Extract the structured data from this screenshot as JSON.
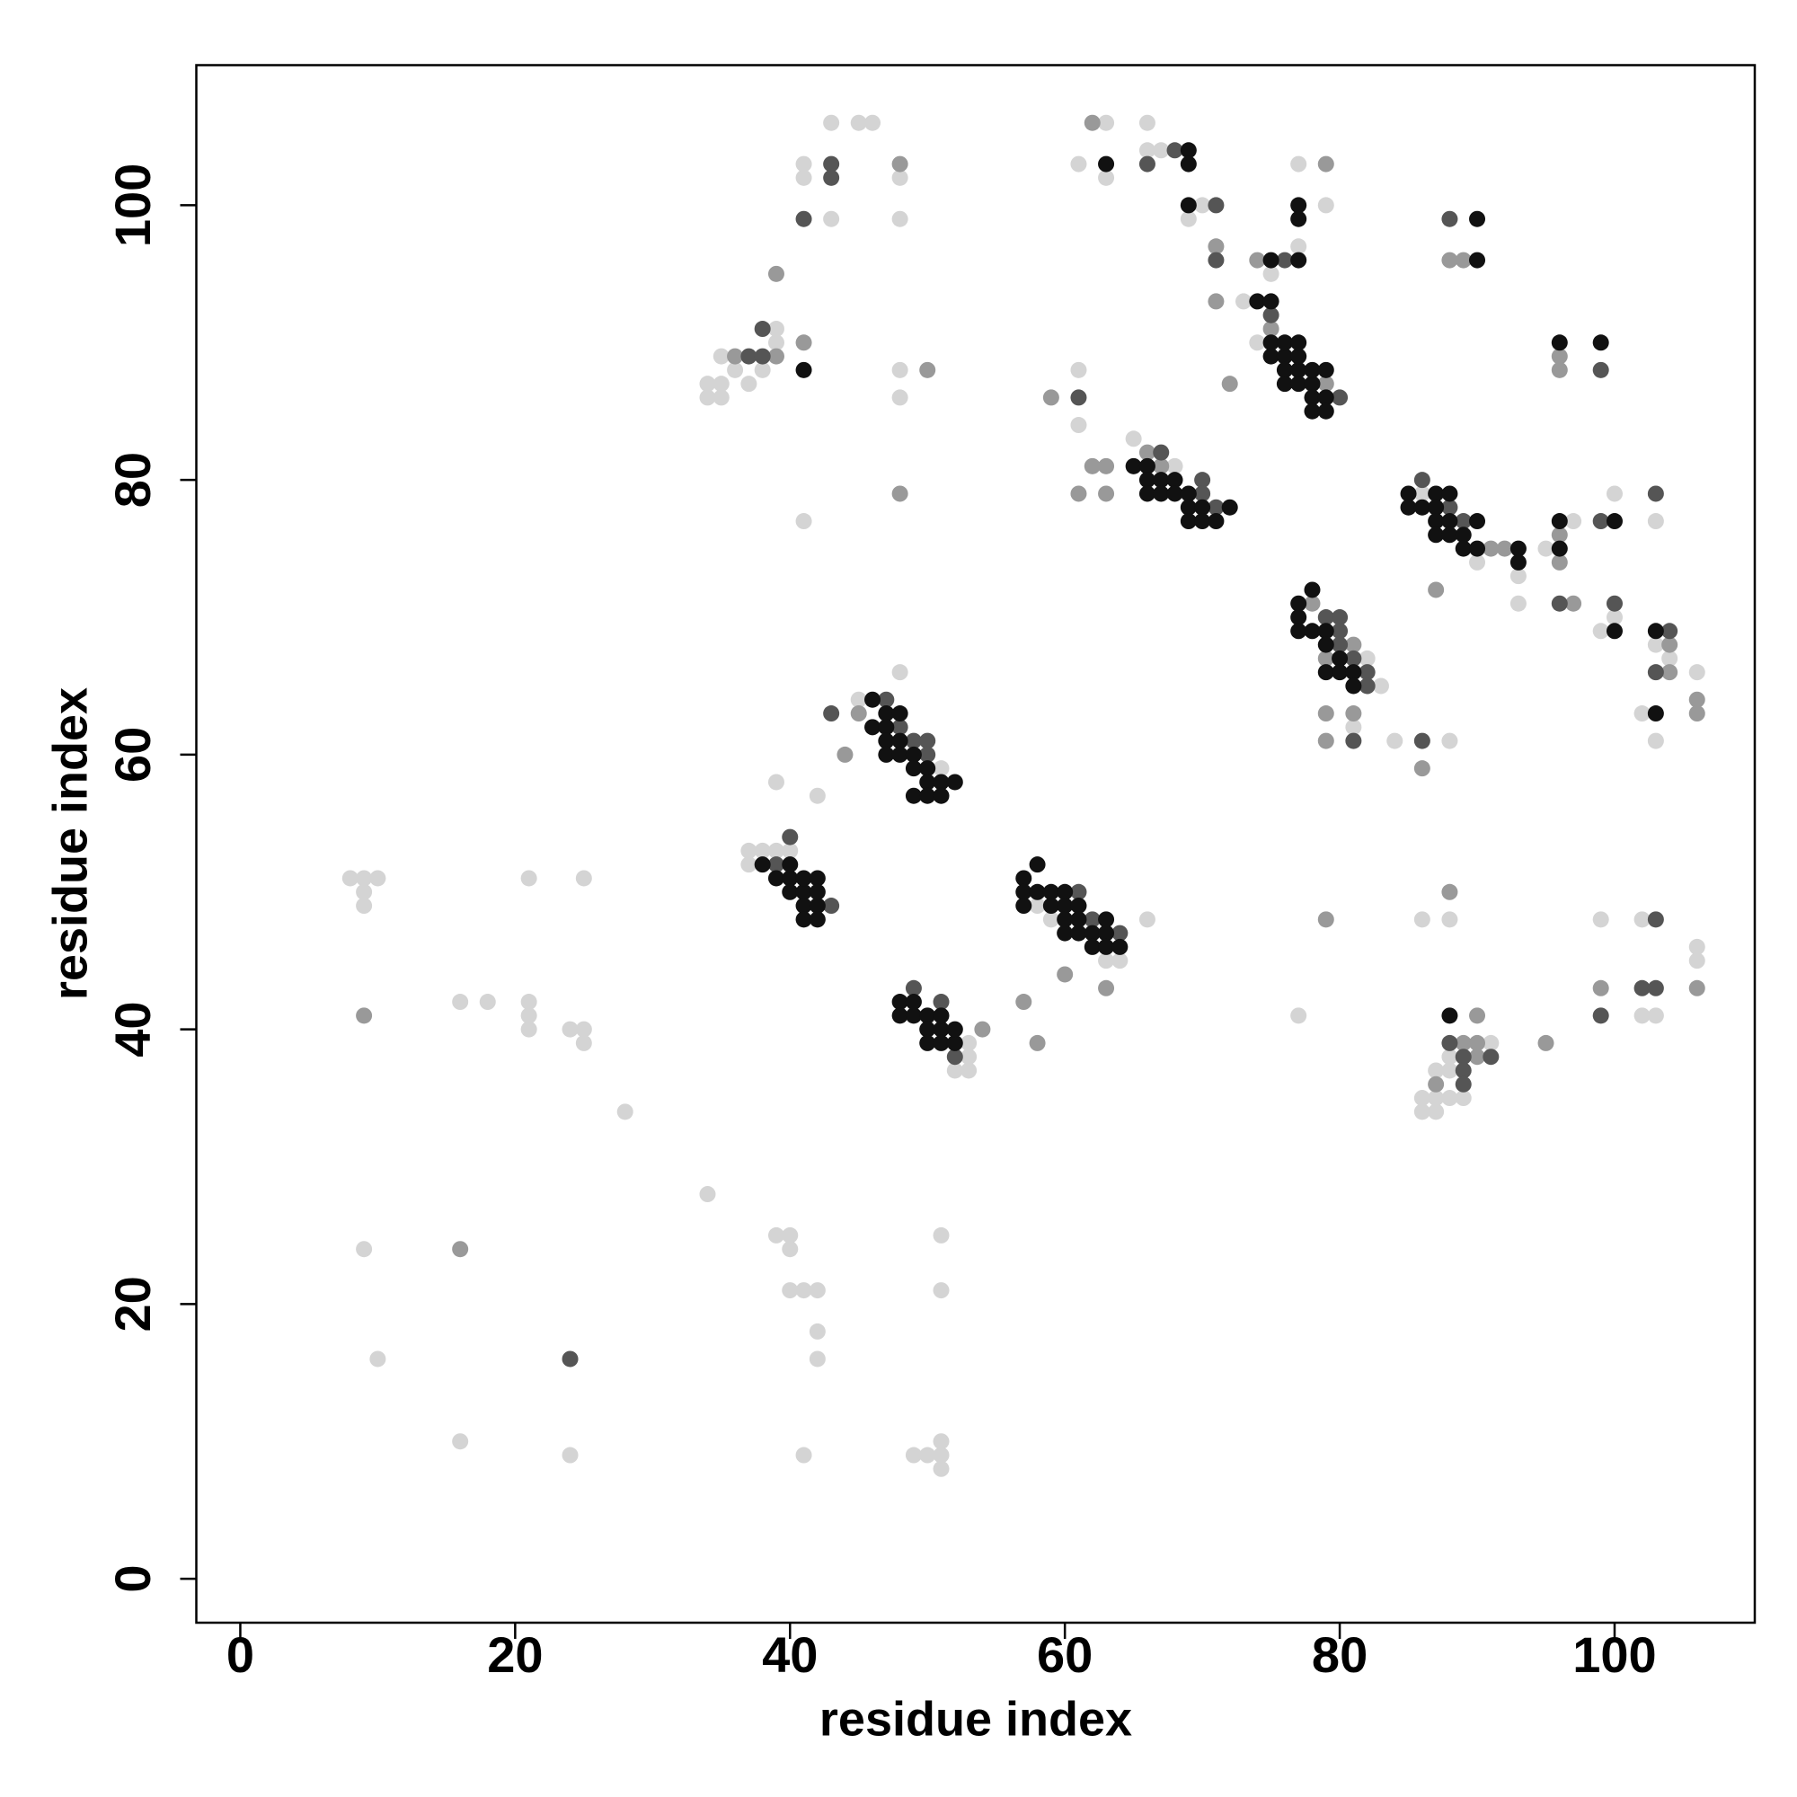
{
  "chart_data": {
    "type": "scatter",
    "xlabel": "residue index",
    "ylabel": "residue index",
    "xlim": [
      -3.2,
      110.2
    ],
    "ylim": [
      -3.2,
      110.2
    ],
    "xticks": [
      0,
      20,
      40,
      60,
      80,
      100
    ],
    "yticks": [
      0,
      20,
      40,
      60,
      80,
      100
    ],
    "series": [
      {
        "color": "#d4d4d4",
        "x": [
          8,
          9,
          10,
          9,
          9,
          21,
          25,
          16,
          18,
          21,
          21,
          21,
          24,
          25,
          25,
          28,
          34,
          9,
          39,
          40,
          40,
          40,
          41,
          42,
          42,
          42,
          10,
          16,
          24,
          41,
          49,
          50,
          51,
          51,
          51,
          51,
          51,
          34,
          34,
          35,
          35,
          35,
          36,
          37,
          38,
          39,
          39,
          41,
          41,
          43,
          45,
          46,
          43,
          48,
          48,
          48,
          48,
          41,
          37,
          38,
          39,
          40,
          37,
          48,
          45,
          51,
          39,
          42,
          52,
          53,
          53,
          53,
          58,
          59,
          63,
          64,
          66,
          65,
          68,
          61,
          61,
          63,
          66,
          61,
          63,
          66,
          67,
          69,
          70,
          73,
          74,
          75,
          77,
          77,
          79,
          81,
          82,
          83,
          84,
          86,
          90,
          93,
          93,
          95,
          97,
          100,
          100,
          99,
          103,
          103,
          104,
          102,
          103,
          106,
          88,
          88,
          86,
          77,
          99,
          102,
          102,
          103,
          106,
          106,
          91,
          88,
          87,
          88,
          86,
          87,
          88,
          89,
          86,
          87
        ],
        "y": [
          51,
          51,
          51,
          50,
          49,
          51,
          51,
          42,
          42,
          42,
          41,
          40,
          40,
          40,
          39,
          34,
          28,
          24,
          25,
          25,
          24,
          21,
          21,
          21,
          18,
          16,
          16,
          10,
          9,
          9,
          9,
          9,
          9,
          10,
          8,
          25,
          21,
          87,
          86,
          86,
          87,
          89,
          88,
          87,
          88,
          90,
          91,
          103,
          102,
          99,
          106,
          106,
          106,
          102,
          99,
          88,
          86,
          77,
          53,
          53,
          53,
          53,
          52,
          66,
          64,
          59,
          58,
          57,
          37,
          37,
          38,
          39,
          49,
          48,
          45,
          45,
          48,
          83,
          81,
          84,
          88,
          106,
          106,
          103,
          102,
          104,
          104,
          99,
          100,
          93,
          90,
          95,
          97,
          103,
          100,
          62,
          67,
          65,
          61,
          79,
          74,
          73,
          71,
          75,
          77,
          79,
          70,
          69,
          77,
          68,
          67,
          63,
          61,
          66,
          61,
          48,
          48,
          41,
          48,
          48,
          41,
          41,
          46,
          45,
          39,
          38,
          37,
          37,
          35,
          35,
          35,
          35,
          34,
          34
        ]
      },
      {
        "color": "#999999",
        "x": [
          9,
          16,
          39,
          41,
          48,
          50,
          48,
          44,
          45,
          54,
          63,
          57,
          58,
          60,
          66,
          67,
          62,
          63,
          61,
          63,
          59,
          62,
          71,
          71,
          72,
          74,
          75,
          79,
          79,
          78,
          79,
          81,
          79,
          79,
          81,
          87,
          91,
          92,
          96,
          96,
          97,
          96,
          96,
          88,
          89,
          104,
          104,
          106,
          106,
          86,
          88,
          79,
          99,
          106,
          89,
          90,
          90,
          90,
          87,
          95,
          36,
          39
        ],
        "y": [
          41,
          24,
          95,
          90,
          103,
          88,
          79,
          60,
          63,
          40,
          43,
          42,
          39,
          44,
          82,
          81,
          81,
          81,
          79,
          79,
          86,
          106,
          97,
          93,
          87,
          96,
          91,
          87,
          103,
          71,
          67,
          68,
          63,
          61,
          63,
          72,
          75,
          75,
          76,
          74,
          71,
          89,
          88,
          96,
          96,
          68,
          66,
          64,
          63,
          59,
          50,
          48,
          43,
          43,
          39,
          39,
          41,
          38,
          36,
          39,
          89,
          89
        ]
      },
      {
        "color": "#555555",
        "x": [
          41,
          43,
          43,
          39,
          43,
          47,
          43,
          49,
          50,
          50,
          48,
          49,
          51,
          52,
          61,
          62,
          64,
          61,
          67,
          70,
          70,
          71,
          66,
          68,
          71,
          71,
          75,
          76,
          80,
          79,
          80,
          80,
          80,
          81,
          82,
          82,
          81,
          86,
          88,
          89,
          96,
          99,
          100,
          99,
          88,
          103,
          104,
          103,
          86,
          103,
          102,
          103,
          99,
          88,
          89,
          91,
          89,
          89,
          24,
          38,
          37,
          38,
          40
        ],
        "y": [
          99,
          103,
          102,
          52,
          49,
          64,
          63,
          61,
          61,
          60,
          62,
          43,
          42,
          38,
          50,
          48,
          47,
          86,
          82,
          80,
          79,
          78,
          103,
          104,
          100,
          96,
          92,
          96,
          86,
          70,
          70,
          69,
          68,
          67,
          66,
          65,
          61,
          80,
          78,
          77,
          71,
          77,
          71,
          88,
          99,
          79,
          69,
          66,
          61,
          48,
          43,
          43,
          41,
          39,
          38,
          38,
          37,
          36,
          16,
          91,
          89,
          89,
          54
        ]
      },
      {
        "color": "#111111",
        "x": [
          41,
          39,
          40,
          40,
          41,
          41,
          42,
          41,
          42,
          38,
          40,
          41,
          42,
          42,
          46,
          47,
          48,
          46,
          47,
          47,
          48,
          47,
          48,
          49,
          49,
          50,
          50,
          51,
          52,
          49,
          50,
          51,
          48,
          48,
          49,
          49,
          50,
          50,
          51,
          51,
          50,
          51,
          52,
          52,
          57,
          57,
          57,
          58,
          58,
          59,
          59,
          60,
          60,
          60,
          60,
          61,
          61,
          61,
          62,
          62,
          63,
          63,
          63,
          64,
          65,
          66,
          66,
          67,
          66,
          67,
          68,
          68,
          69,
          69,
          70,
          69,
          70,
          71,
          72,
          63,
          69,
          69,
          69,
          75,
          77,
          74,
          75,
          75,
          75,
          76,
          76,
          76,
          77,
          77,
          77,
          76,
          77,
          78,
          78,
          79,
          78,
          79,
          78,
          79,
          77,
          77,
          77,
          77,
          77,
          78,
          78,
          79,
          79,
          79,
          80,
          80,
          81,
          81,
          85,
          85,
          86,
          87,
          87,
          87,
          87,
          88,
          88,
          88,
          89,
          89,
          90,
          90,
          93,
          93,
          96,
          96,
          100,
          100,
          96,
          99,
          90,
          90,
          103,
          103,
          88
        ],
        "y": [
          88,
          51,
          51,
          50,
          50,
          49,
          49,
          48,
          48,
          52,
          52,
          51,
          51,
          50,
          64,
          63,
          63,
          62,
          62,
          61,
          61,
          60,
          60,
          60,
          59,
          59,
          58,
          58,
          58,
          57,
          57,
          57,
          42,
          41,
          41,
          42,
          41,
          40,
          40,
          41,
          39,
          39,
          39,
          40,
          51,
          50,
          49,
          52,
          50,
          50,
          49,
          50,
          49,
          48,
          47,
          49,
          48,
          47,
          47,
          46,
          48,
          47,
          46,
          46,
          81,
          81,
          80,
          80,
          79,
          79,
          80,
          79,
          79,
          78,
          78,
          77,
          77,
          77,
          78,
          103,
          104,
          103,
          100,
          96,
          96,
          93,
          93,
          90,
          89,
          89,
          90,
          88,
          88,
          89,
          90,
          87,
          87,
          87,
          88,
          88,
          86,
          86,
          85,
          85,
          100,
          99,
          71,
          70,
          69,
          72,
          69,
          69,
          68,
          66,
          67,
          66,
          66,
          65,
          79,
          78,
          78,
          79,
          78,
          77,
          76,
          79,
          77,
          76,
          76,
          75,
          77,
          75,
          75,
          74,
          77,
          75,
          77,
          69,
          90,
          90,
          99,
          96,
          69,
          63,
          41
        ]
      }
    ]
  }
}
